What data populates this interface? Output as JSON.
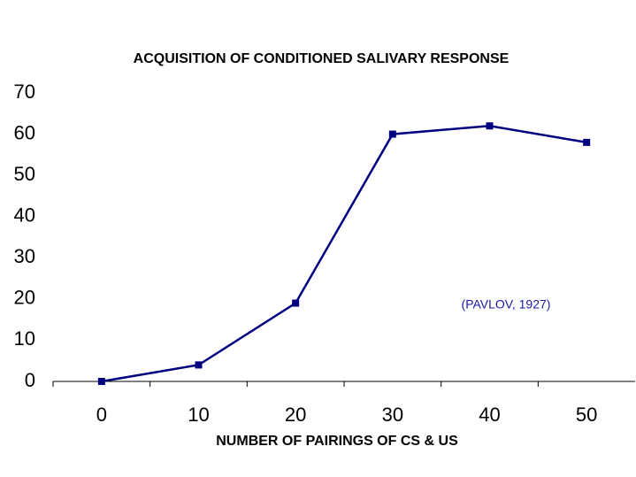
{
  "chart_data": {
    "type": "line",
    "title": "ACQUISITION OF CONDITIONED SALIVARY RESPONSE",
    "x_label": "NUMBER OF PAIRINGS OF CS & US",
    "annotation": "(PAVLOV, 1927)",
    "categories": [
      "0",
      "10",
      "20",
      "30",
      "40",
      "50"
    ],
    "values": [
      0,
      4,
      19,
      60,
      62,
      58
    ],
    "color": "#000080",
    "annotation_color": "#1a1aa0",
    "ylim": [
      0,
      70
    ],
    "yticks": [
      0,
      10,
      20,
      30,
      40,
      50,
      60,
      70
    ],
    "grid": false
  }
}
